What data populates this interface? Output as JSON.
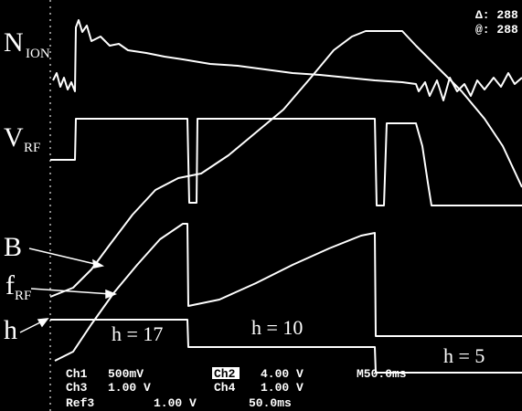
{
  "trace_labels": {
    "n_ion": {
      "symbol": "N",
      "subscript": "ION"
    },
    "v_rf": {
      "symbol": "V",
      "subscript": "RF"
    },
    "b": "B",
    "f_rf": {
      "symbol": "f",
      "subscript": "RF"
    },
    "h": "h"
  },
  "harmonics": [
    "h = 17",
    "h = 10",
    "h = 5"
  ],
  "cursor": {
    "delta": "Δ: 288",
    "at": "@: 288"
  },
  "readout": {
    "rows": [
      [
        "Ch1",
        "500mV",
        "Ch2",
        "4.00 V",
        "M50.0ms"
      ],
      [
        "Ch3",
        "1.00 V",
        "Ch4",
        "1.00 V"
      ],
      [
        "Ref3",
        "1.00 V",
        "50.0ms"
      ]
    ]
  }
}
